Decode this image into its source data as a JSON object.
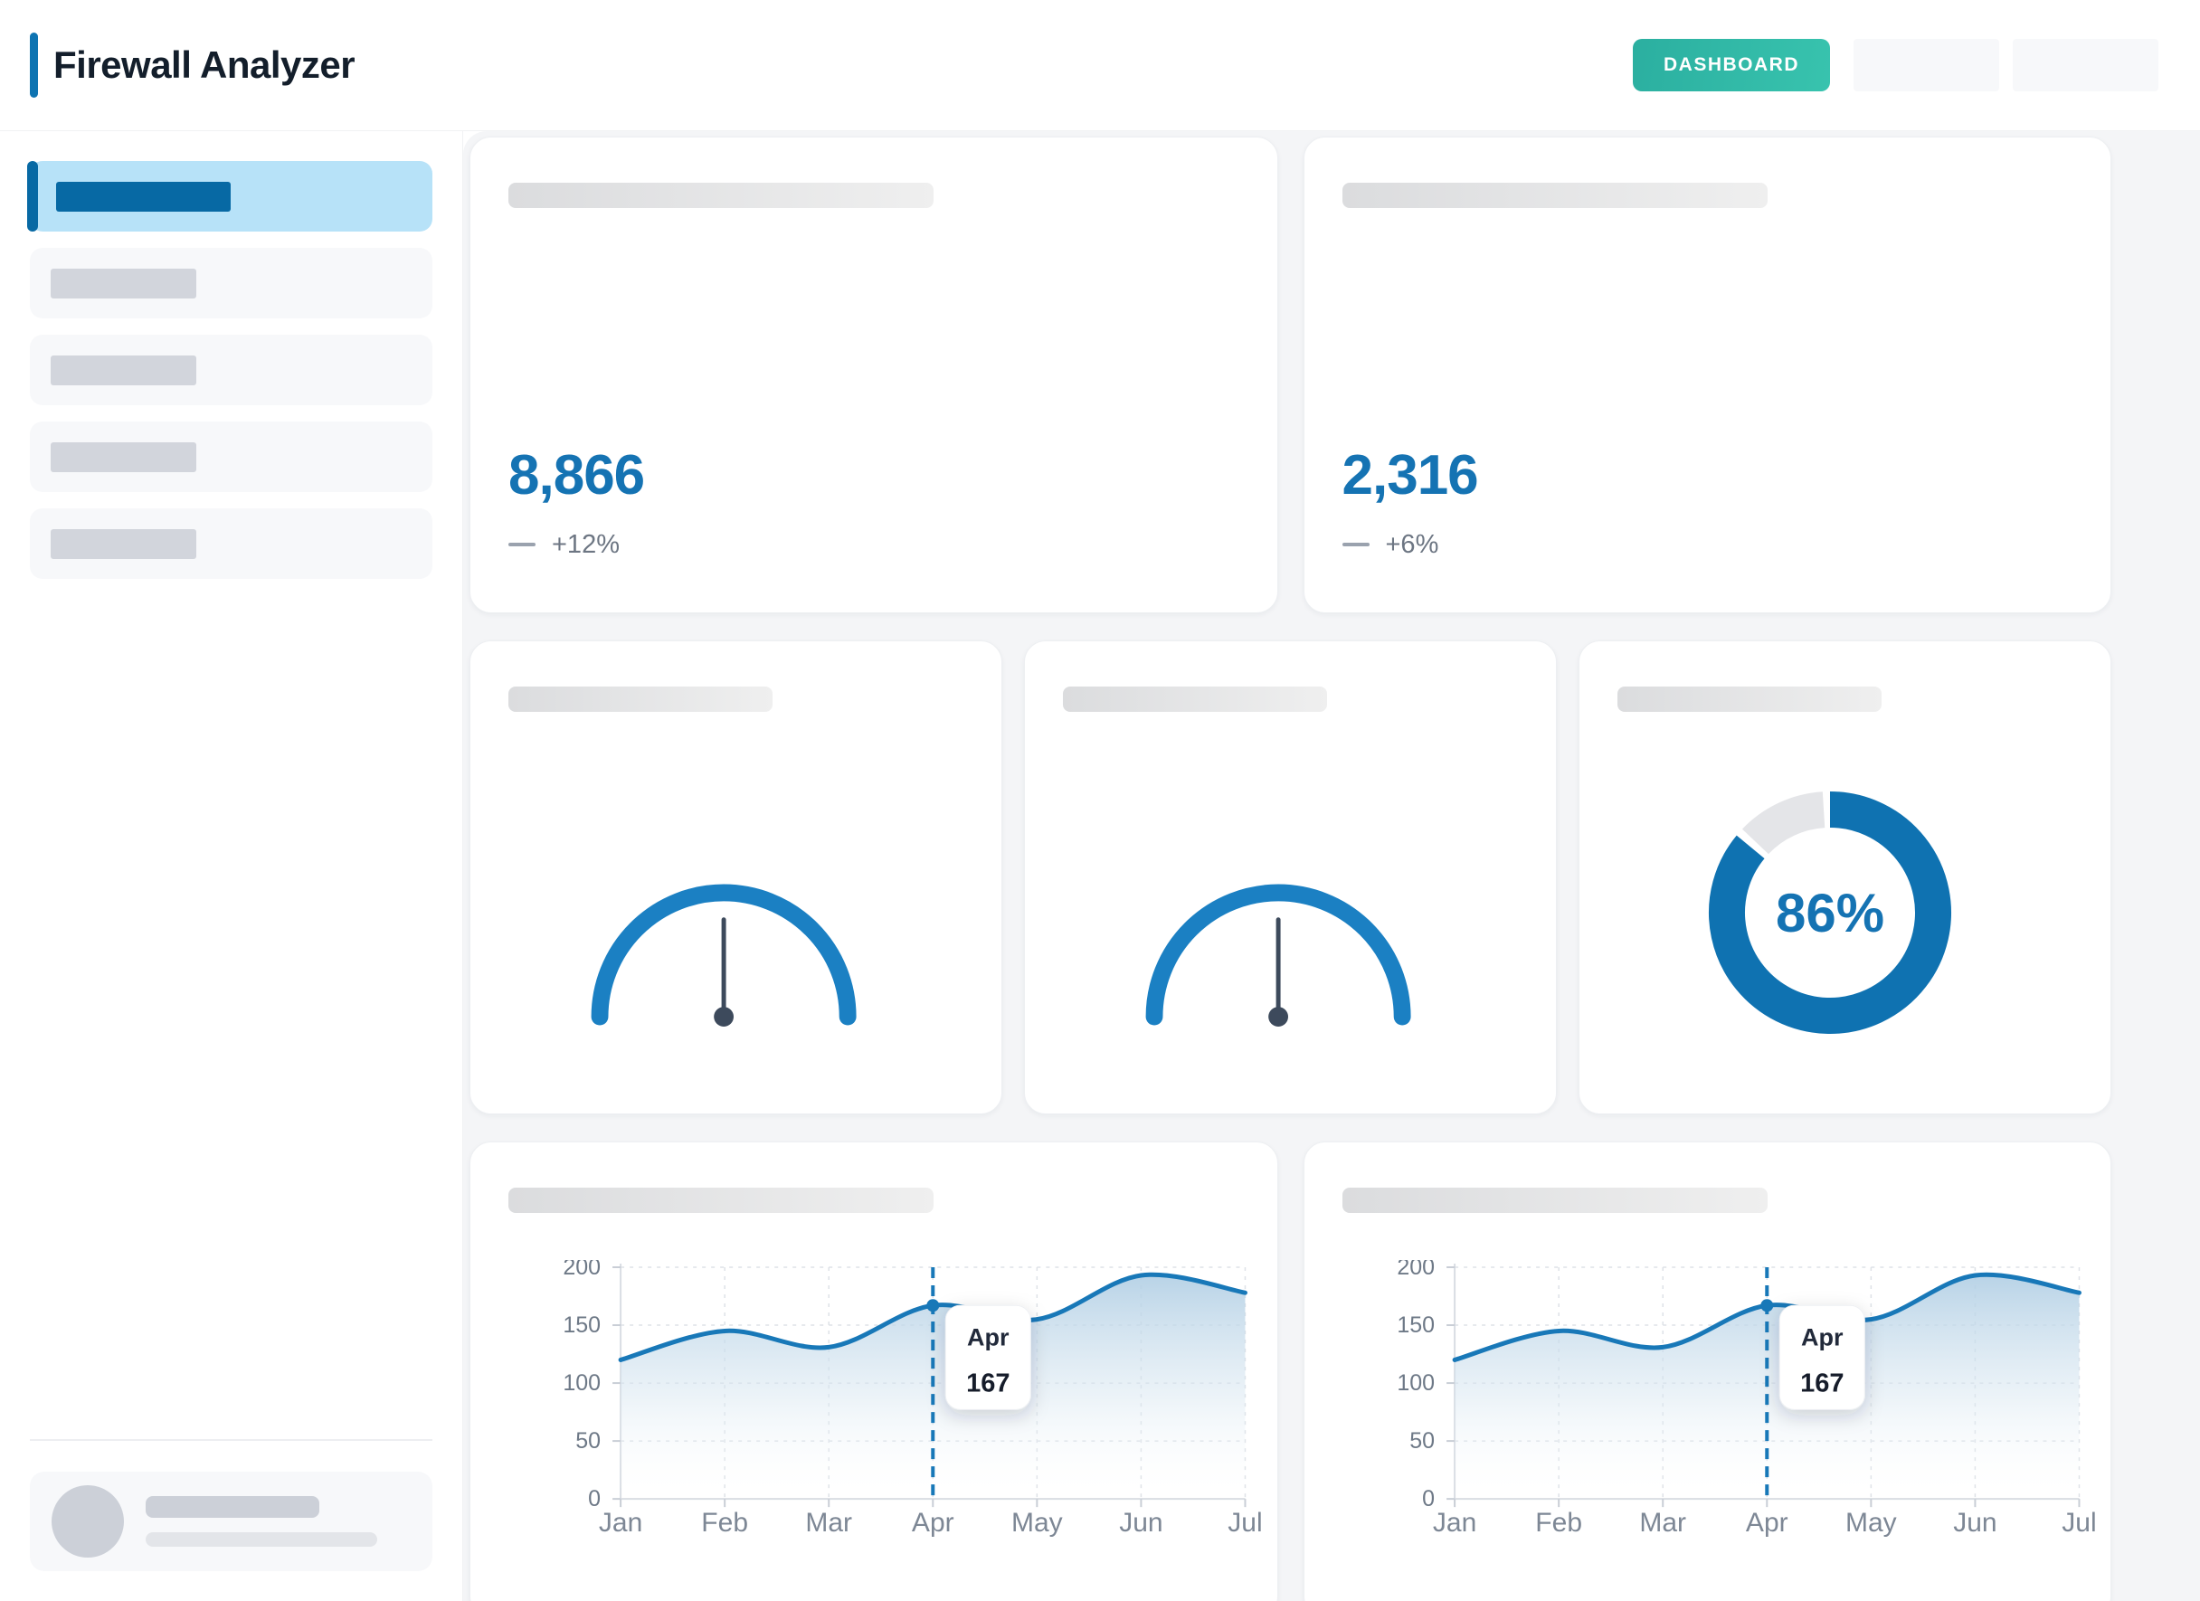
{
  "header": {
    "title": "Firewall Analyzer",
    "dashboard_label": "DASHBOARD",
    "accent_color": "#0e74b2",
    "placeholder_button_count": 2
  },
  "sidebar": {
    "item_count": 5,
    "active_index": 0
  },
  "stats": [
    {
      "value": "8,866",
      "change": "+12%"
    },
    {
      "value": "2,316",
      "change": "+6%"
    }
  ],
  "colors": {
    "primary_blue": "#1573b3",
    "sidebar_active_bg": "#b7e2f8",
    "sidebar_active_accent": "#0769a4",
    "teal_button_start": "#2bafa0",
    "teal_button_end": "#38c3ae",
    "gauge_arc": "#1b80c3",
    "needle": "#3d4a5c",
    "donut_fill": "#0f72b1",
    "donut_track": "#e4e5e8",
    "chart_line": "#1878b8",
    "content_bg": "#f4f5f7"
  },
  "chart_data": [
    {
      "id": "area-trend-1",
      "type": "area",
      "x": [
        "Jan",
        "Feb",
        "Mar",
        "Apr",
        "May",
        "Jun",
        "Jul"
      ],
      "values": [
        120,
        145,
        131,
        167,
        155,
        193,
        178
      ],
      "ylim": [
        0,
        200
      ],
      "yticks": [
        0,
        50,
        100,
        150,
        200
      ],
      "grid": "dashed",
      "line_color": "#1878b8",
      "highlight": {
        "index": 3,
        "label": "Apr",
        "value": 167
      },
      "tooltip": {
        "title": "Apr",
        "value": "167"
      }
    },
    {
      "id": "area-trend-2",
      "type": "area",
      "x": [
        "Jan",
        "Feb",
        "Mar",
        "Apr",
        "May",
        "Jun",
        "Jul"
      ],
      "values": [
        120,
        145,
        131,
        167,
        155,
        193,
        178
      ],
      "ylim": [
        0,
        200
      ],
      "yticks": [
        0,
        50,
        100,
        150,
        200
      ],
      "grid": "dashed",
      "line_color": "#1878b8",
      "highlight": {
        "index": 3,
        "label": "Apr",
        "value": 167
      },
      "tooltip": {
        "title": "Apr",
        "value": "167"
      }
    },
    {
      "id": "gauge-1",
      "type": "gauge",
      "arc_color": "#1b80c3",
      "needle_color": "#3d4a5c",
      "needle_angle_deg": 0
    },
    {
      "id": "gauge-2",
      "type": "gauge",
      "arc_color": "#1b80c3",
      "needle_color": "#3d4a5c",
      "needle_angle_deg": 0
    },
    {
      "id": "donut-1",
      "type": "donut",
      "percent": 86,
      "label": "86%",
      "color": "#0f72b1",
      "track_color": "#e4e5e8"
    }
  ]
}
